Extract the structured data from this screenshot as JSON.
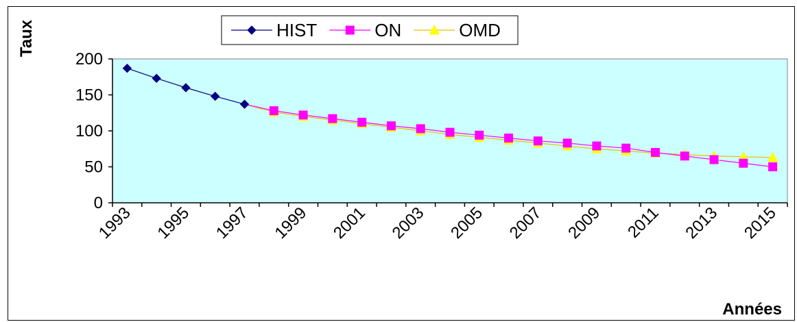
{
  "chart_data": {
    "type": "line",
    "title": "",
    "xlabel": "Années",
    "ylabel": "Taux",
    "ylim": [
      0,
      200
    ],
    "yticks": [
      "0",
      "50",
      "100",
      "150",
      "200"
    ],
    "xticks": [
      "1993",
      "1995",
      "1997",
      "1999",
      "2001",
      "2003",
      "2005",
      "2007",
      "2009",
      "2011",
      "2013",
      "2015"
    ],
    "x": [
      1993,
      1994,
      1995,
      1996,
      1997,
      1998,
      1999,
      2000,
      2001,
      2002,
      2003,
      2004,
      2005,
      2006,
      2007,
      2008,
      2009,
      2010,
      2011,
      2012,
      2013,
      2014,
      2015
    ],
    "plot_background": "#CCFFFF",
    "grid": false,
    "legend_position": "top",
    "series": [
      {
        "name": "HIST",
        "color": "#000080",
        "marker": "diamond",
        "values": [
          187,
          173,
          160,
          148,
          137,
          null,
          null,
          null,
          null,
          null,
          null,
          null,
          null,
          null,
          null,
          null,
          null,
          null,
          null,
          null,
          null,
          null,
          null
        ]
      },
      {
        "name": "ON",
        "color": "#FF00FF",
        "marker": "square",
        "values": [
          null,
          null,
          null,
          null,
          137,
          128,
          122,
          117,
          112,
          107,
          103,
          98,
          94,
          90,
          86,
          83,
          79,
          76,
          70,
          65,
          60,
          55,
          50
        ]
      },
      {
        "name": "OMD",
        "color": "#FFFF00",
        "marker": "triangle",
        "values": [
          null,
          null,
          null,
          null,
          137,
          126,
          120,
          115,
          110,
          105,
          100,
          95,
          91,
          87,
          83,
          79,
          75,
          72,
          69,
          67,
          65,
          64,
          63
        ]
      }
    ]
  }
}
